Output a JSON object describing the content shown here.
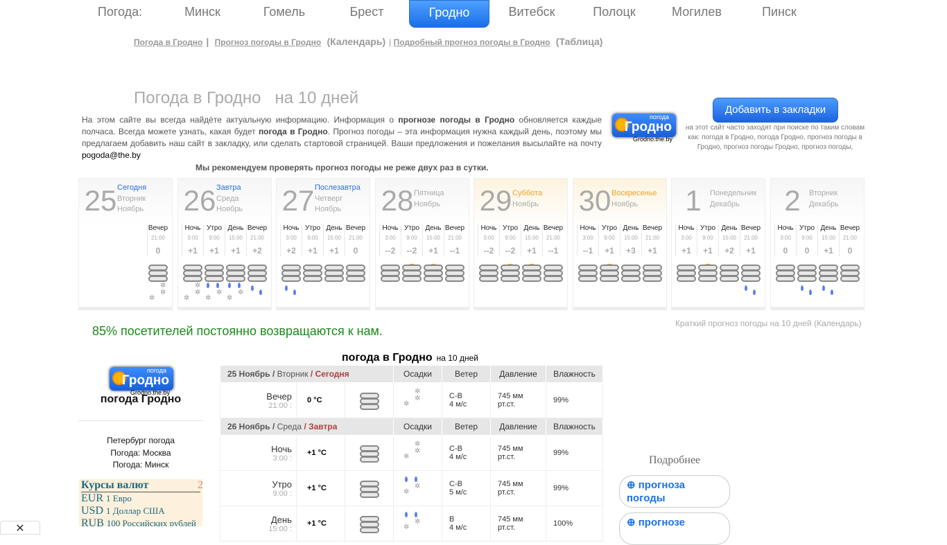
{
  "nav": {
    "label": "Погода:",
    "cities": [
      "Минск",
      "Гомель",
      "Брест",
      "Гродно",
      "Витебск",
      "Полоцк",
      "Могилев",
      "Пинск"
    ],
    "active": "Гродно"
  },
  "sublinks": {
    "l1": "Погода в Гродно",
    "l2": "Прогноз погоды в Гродно",
    "n2": "(Календарь)",
    "l3": "Подробный прогноз погоды в Гродно",
    "n3": "(Таблица)"
  },
  "title": "Погода в Гродно   на 10 дней",
  "intro": {
    "p1": "На этом сайте вы всегда найдёте актуальную информацию. Информация о ",
    "b1": "прогнозе погоды в Гродно",
    "p2": " обновляется каждые полчаса. Всегда можете узнать, какая будет ",
    "b2": "погода в Гродно",
    "p3": ". Прогноз погоды – эта информация нужна каждый день, поэтому мы предлагаем добавить наш сайт в закладку, или сделать стартовой страницей. Ваши предложения и пожелания высылайте на почту ",
    "email": "pogoda@the.by"
  },
  "recommend": "Мы рекомендуем проверять прогноз погоды не реже двух раз в сутки.",
  "logo": {
    "small": "погода",
    "big": "Гродно",
    "domain": "Grodno.the.by"
  },
  "bookmark_button": "Добавить в закладки",
  "keywords": "на этот сайт часто заходят при поиске по таким словам как: погода в Гродно, погода Гродно, прогноз погоды в Гродно, прогноз погоды Гродно, прогноз погоды,",
  "colors": {
    "blue_label": "#2a6fe0",
    "weekend_label": "#f0a020",
    "accent": "#1a6fe8",
    "green": "#1a8a1a"
  },
  "days": [
    {
      "date": "25",
      "labels": [
        "Сегодня",
        "Вторник",
        "Ноябрь"
      ],
      "style": "blue",
      "periods": [
        {
          "name": "Вечер",
          "time": "21:00",
          "temp": "0",
          "icon": "cloud",
          "precip": "snow"
        }
      ]
    },
    {
      "date": "26",
      "labels": [
        "Завтра",
        "Среда",
        "Ноябрь"
      ],
      "style": "blue",
      "periods": [
        {
          "name": "Ночь",
          "time": "3:00",
          "temp": "+1",
          "icon": "cloud",
          "precip": "snow"
        },
        {
          "name": "Утро",
          "time": "9:00",
          "temp": "+1",
          "icon": "cloud",
          "precip": "mixed"
        },
        {
          "name": "День",
          "time": "15:00",
          "temp": "+1",
          "icon": "cloud",
          "precip": "mixed"
        },
        {
          "name": "Вечер",
          "time": "21:00",
          "temp": "+2",
          "icon": "cloud",
          "precip": "rain"
        }
      ]
    },
    {
      "date": "27",
      "labels": [
        "Послезавтра",
        "Четверг",
        "Ноябрь"
      ],
      "style": "blue",
      "periods": [
        {
          "name": "Ночь",
          "time": "3:00",
          "temp": "+2",
          "icon": "cloud",
          "precip": "rain"
        },
        {
          "name": "Утро",
          "time": "9:00",
          "temp": "+1",
          "icon": "cloud",
          "precip": ""
        },
        {
          "name": "День",
          "time": "15:00",
          "temp": "+1",
          "icon": "cloud",
          "precip": ""
        },
        {
          "name": "Вечер",
          "time": "21:00",
          "temp": "0",
          "icon": "cloud",
          "precip": ""
        }
      ]
    },
    {
      "date": "28",
      "labels": [
        "Пятница",
        "Ноябрь"
      ],
      "style": "gray",
      "periods": [
        {
          "name": "Ночь",
          "time": "3:00",
          "temp": "--2",
          "icon": "cloud",
          "precip": ""
        },
        {
          "name": "Утро",
          "time": "9:00",
          "temp": "--2",
          "icon": "sun-cloud",
          "precip": ""
        },
        {
          "name": "День",
          "time": "15:00",
          "temp": "+1",
          "icon": "sun-cloud",
          "precip": ""
        },
        {
          "name": "Вечер",
          "time": "21:00",
          "temp": "--1",
          "icon": "cloud",
          "precip": ""
        }
      ]
    },
    {
      "date": "29",
      "labels": [
        "Суббота",
        "Ноябрь"
      ],
      "style": "weekend",
      "periods": [
        {
          "name": "Ночь",
          "time": "3:00",
          "temp": "--2",
          "icon": "cloud",
          "precip": ""
        },
        {
          "name": "Утро",
          "time": "9:00",
          "temp": "--2",
          "icon": "sun-cloud",
          "precip": ""
        },
        {
          "name": "День",
          "time": "15:00",
          "temp": "+1",
          "icon": "sun-cloud",
          "precip": ""
        },
        {
          "name": "Вечер",
          "time": "21:00",
          "temp": "--1",
          "icon": "cloud",
          "precip": ""
        }
      ]
    },
    {
      "date": "30",
      "labels": [
        "Воскресенье",
        "Ноябрь"
      ],
      "style": "weekend",
      "periods": [
        {
          "name": "Ночь",
          "time": "3:00",
          "temp": "--1",
          "icon": "cloud",
          "precip": ""
        },
        {
          "name": "Утро",
          "time": "9:00",
          "temp": "+1",
          "icon": "sun-cloud",
          "precip": ""
        },
        {
          "name": "День",
          "time": "15:00",
          "temp": "+3",
          "icon": "cloud",
          "precip": ""
        },
        {
          "name": "Вечер",
          "time": "21:00",
          "temp": "+1",
          "icon": "cloud",
          "precip": ""
        }
      ]
    },
    {
      "date": "1",
      "labels": [
        "Понедельник",
        "Декабрь"
      ],
      "style": "gray",
      "periods": [
        {
          "name": "Ночь",
          "time": "3:00",
          "temp": "+1",
          "icon": "cloud",
          "precip": ""
        },
        {
          "name": "Утро",
          "time": "9:00",
          "temp": "+1",
          "icon": "sun-cloud",
          "precip": ""
        },
        {
          "name": "День",
          "time": "15:00",
          "temp": "+2",
          "icon": "cloud",
          "precip": ""
        },
        {
          "name": "Вечер",
          "time": "21:00",
          "temp": "+1",
          "icon": "cloud",
          "precip": "rain"
        }
      ]
    },
    {
      "date": "2",
      "labels": [
        "Вторник",
        "Декабрь"
      ],
      "style": "gray",
      "periods": [
        {
          "name": "Ночь",
          "time": "3:00",
          "temp": "0",
          "icon": "cloud",
          "precip": ""
        },
        {
          "name": "Утро",
          "time": "9:00",
          "temp": "0",
          "icon": "cloud",
          "precip": "rain"
        },
        {
          "name": "День",
          "time": "15:00",
          "temp": "+1",
          "icon": "cloud",
          "precip": "rain"
        },
        {
          "name": "Вечер",
          "time": "21:00",
          "temp": "0",
          "icon": "cloud",
          "precip": ""
        }
      ]
    }
  ],
  "returning": "85% посетителей постоянно возвращаются к нам.",
  "short_link": "Краткий прогноз погоды на 10 дней (Календарь)",
  "table": {
    "title": "погода в Гродно",
    "subtitle": "на 10 дней",
    "columns": [
      "Осадки",
      "Ветер",
      "Давление",
      "Влажность"
    ],
    "groups": [
      {
        "date": "25 Ноябрь /",
        "weekday": "Вторник",
        "rel": "/ Сегодня",
        "rows": [
          {
            "period": "Вечер",
            "time": "21:00 :",
            "temp": "0 °C",
            "precip": "snow",
            "wind_dir": "С-В",
            "wind_speed": "4 м/с",
            "pressure": "745 мм",
            "pressure_unit": "рт.ст.",
            "humidity": "99%"
          }
        ]
      },
      {
        "date": "26 Ноябрь /",
        "weekday": "Среда",
        "rel": "/ Завтра",
        "rows": [
          {
            "period": "Ночь",
            "time": "3:00 :",
            "temp": "+1 °C",
            "precip": "snow",
            "wind_dir": "С-В",
            "wind_speed": "4 м/с",
            "pressure": "745 мм",
            "pressure_unit": "рт.ст.",
            "humidity": "99%"
          },
          {
            "period": "Утро",
            "time": "9:00 :",
            "temp": "+1 °C",
            "precip": "mixed",
            "wind_dir": "С-В",
            "wind_speed": "5 м/с",
            "pressure": "745 мм",
            "pressure_unit": "рт.ст.",
            "humidity": "99%"
          },
          {
            "period": "День",
            "time": "15:00 :",
            "temp": "+1 °C",
            "precip": "mixed",
            "wind_dir": "В",
            "wind_speed": "4 м/с",
            "pressure": "745 мм",
            "pressure_unit": "рт.ст.",
            "humidity": "100%"
          }
        ]
      }
    ]
  },
  "sidebar": {
    "title": "погода Гродно",
    "links": [
      "Петербург погода",
      "Погода: Москва",
      "Погода: Минск"
    ],
    "currency_title": "Курсы валют",
    "currency_extra": "2",
    "currencies": [
      {
        "code": "EUR",
        "name": "1 Евро"
      },
      {
        "code": "USD",
        "name": "1 Доллар США"
      },
      {
        "code": "RUB",
        "name": "100 Российских рублей"
      }
    ]
  },
  "more": {
    "label": "Подробнее",
    "buttons": [
      "прогноза погоды",
      "прогнозе"
    ]
  },
  "close_label": "✕"
}
